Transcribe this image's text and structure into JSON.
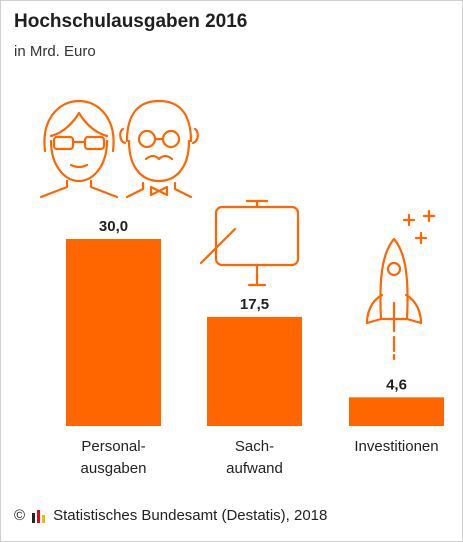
{
  "header": {
    "title": "Hochschulausgaben 2016",
    "subtitle": "in Mrd. Euro"
  },
  "footer": {
    "copyright_symbol": "©",
    "source": "Statistisches Bundesamt (Destatis), 2018",
    "logo_icon": "destatis-logo-icon"
  },
  "colors": {
    "bar": "#ff6600",
    "icon_stroke": "#ff6600"
  },
  "chart_data": {
    "type": "bar",
    "title": "Hochschulausgaben 2016",
    "subtitle": "in Mrd. Euro",
    "categories": [
      [
        "Personal-",
        "ausgaben"
      ],
      [
        "Sach-",
        "aufwand"
      ],
      [
        "Investitionen"
      ]
    ],
    "values": [
      30.0,
      17.5,
      4.6
    ],
    "value_labels": [
      "30,0",
      "17,5",
      "4,6"
    ],
    "ylim": [
      0,
      30
    ],
    "grid": false,
    "legend": "none",
    "icons": [
      "people-icon",
      "presentation-board-icon",
      "rocket-icon"
    ]
  }
}
